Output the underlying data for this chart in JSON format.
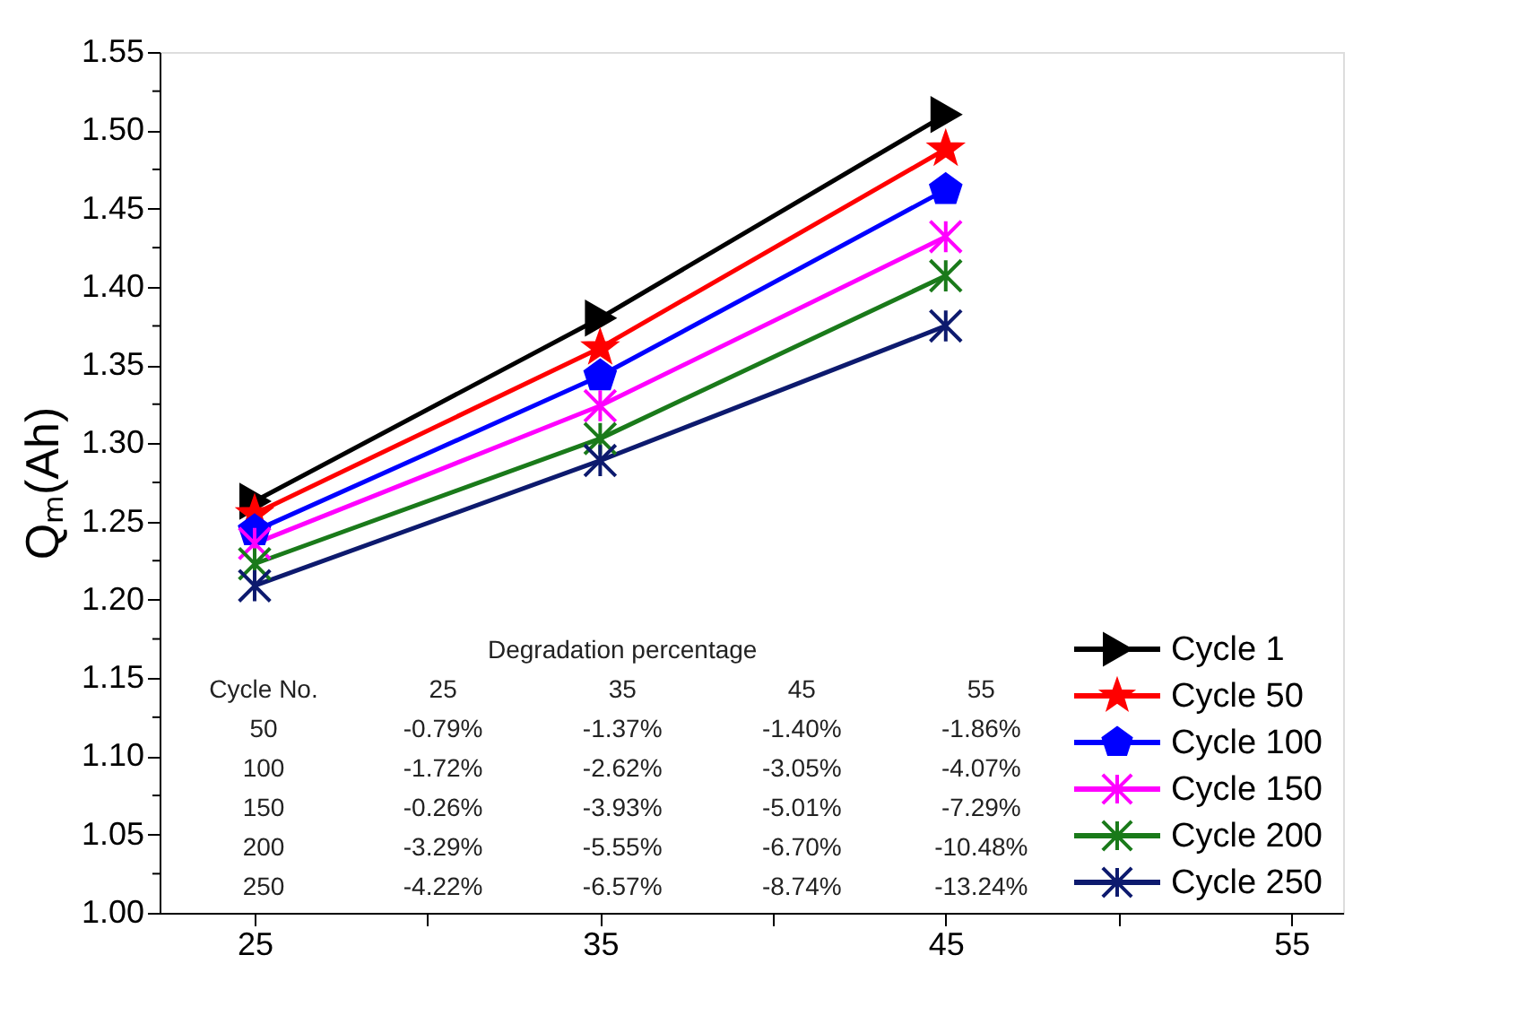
{
  "chart_data": {
    "type": "line",
    "ylabel": "Qₘ(Ah)",
    "x": [
      25,
      35,
      45
    ],
    "xlim": [
      22.25,
      56.5
    ],
    "xticks": [
      25,
      {
        "value": 30,
        "label": null
      },
      35,
      {
        "value": 40,
        "label": null
      },
      45,
      {
        "value": 50,
        "label": null
      },
      55
    ],
    "ylim": [
      1.0,
      1.55
    ],
    "yticks": [
      {
        "value": 1.0,
        "label": "1.00"
      },
      {
        "value": 1.025,
        "label": null
      },
      {
        "value": 1.05,
        "label": "1.05"
      },
      {
        "value": 1.075,
        "label": null
      },
      {
        "value": 1.1,
        "label": "1.10"
      },
      {
        "value": 1.125,
        "label": null
      },
      {
        "value": 1.15,
        "label": "1.15"
      },
      {
        "value": 1.175,
        "label": null
      },
      {
        "value": 1.2,
        "label": "1.20"
      },
      {
        "value": 1.225,
        "label": null
      },
      {
        "value": 1.25,
        "label": "1.25"
      },
      {
        "value": 1.275,
        "label": null
      },
      {
        "value": 1.3,
        "label": "1.30"
      },
      {
        "value": 1.325,
        "label": null
      },
      {
        "value": 1.35,
        "label": "1.35"
      },
      {
        "value": 1.375,
        "label": null
      },
      {
        "value": 1.4,
        "label": "1.40"
      },
      {
        "value": 1.425,
        "label": null
      },
      {
        "value": 1.45,
        "label": "1.45"
      },
      {
        "value": 1.475,
        "label": null
      },
      {
        "value": 1.5,
        "label": "1.50"
      },
      {
        "value": 1.525,
        "label": null
      },
      {
        "value": 1.55,
        "label": "1.55"
      }
    ],
    "grid": false,
    "legend": "bottom right",
    "line_style": "solid",
    "series": [
      {
        "name": "Cycle 1",
        "color": "#000000",
        "marker": "triangle",
        "values": [
          1.263,
          1.38,
          1.51
        ]
      },
      {
        "name": "Cycle 50",
        "color": "#ff0000",
        "marker": "star",
        "values": [
          1.255,
          1.361,
          1.488
        ]
      },
      {
        "name": "Cycle 100",
        "color": "#0000ff",
        "marker": "circle",
        "values": [
          1.244,
          1.343,
          1.462
        ]
      },
      {
        "name": "Cycle 150",
        "color": "#ff00ff",
        "marker": "cross",
        "values": [
          1.236,
          1.324,
          1.432
        ]
      },
      {
        "name": "Cycle 200",
        "color": "#1a7a1a",
        "marker": "cross",
        "values": [
          1.223,
          1.303,
          1.407
        ]
      },
      {
        "name": "Cycle 250",
        "color": "#0d1a6e",
        "marker": "cross",
        "values": [
          1.209,
          1.289,
          1.375
        ]
      }
    ],
    "annotations": [
      "Degradation percentage",
      "Cycle No.",
      "25",
      "35",
      "45",
      "55",
      "50",
      "-0.79%",
      "-1.37%",
      "-1.40%",
      "-1.86%",
      "100",
      "-1.72%",
      "-2.62%",
      "-3.05%",
      "-4.07%",
      "150",
      "-0.26%",
      "-3.93%",
      "-5.01%",
      "-7.29%",
      "200",
      "-3.29%",
      "-5.55%",
      "-6.70%",
      "-10.48%",
      "250",
      "-4.22%",
      "-6.57%",
      "-8.74%",
      "-13.24%"
    ]
  }
}
